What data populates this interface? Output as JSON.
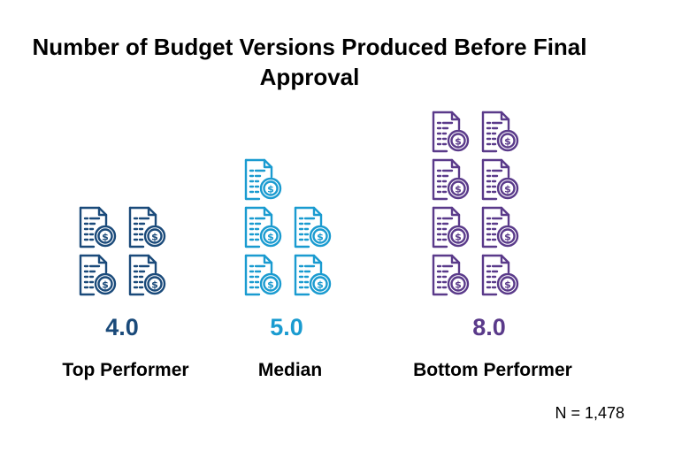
{
  "title": "Number of Budget Versions Produced Before Final Approval",
  "footnote": "N = 1,478",
  "colors": {
    "top_performer": "#1a4a7a",
    "median": "#1a9bd0",
    "bottom_performer": "#5a3a8a"
  },
  "icon": "document-dollar-icon",
  "chart_data": {
    "type": "pictograph",
    "title": "Number of Budget Versions Produced Before Final Approval",
    "categories": [
      "Top Performer",
      "Median",
      "Bottom Performer"
    ],
    "values": [
      4.0,
      5.0,
      8.0
    ],
    "value_labels": [
      "4.0",
      "5.0",
      "8.0"
    ],
    "unit_per_icon": 1,
    "note": "N = 1,478"
  }
}
